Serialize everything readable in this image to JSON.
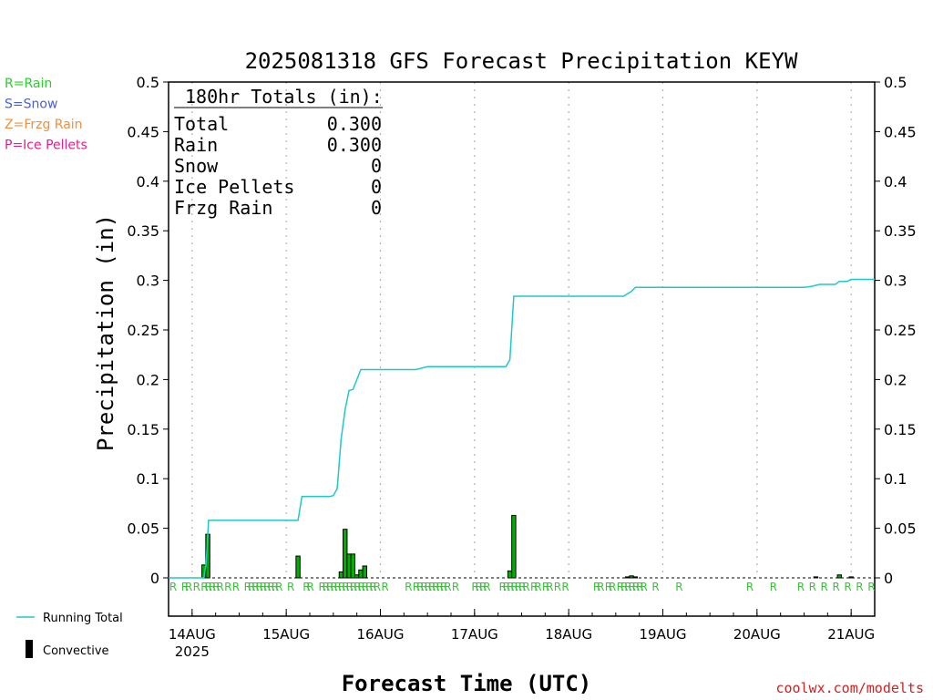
{
  "chart_data": {
    "type": "bar",
    "title": "2025081318 GFS Forecast Precipitation KEYW",
    "xlabel": "Forecast Time (UTC)",
    "ylabel": "Precipitation (in)",
    "ylim": [
      0,
      0.5
    ],
    "y_ticks": [
      "0",
      "0.05",
      "0.1",
      "0.15",
      "0.2",
      "0.25",
      "0.3",
      "0.35",
      "0.4",
      "0.45",
      "0.5"
    ],
    "xlim_hours": [
      0,
      180
    ],
    "x_ticks": [
      {
        "hour": 6,
        "label": "14AUG",
        "sublabel": "2025"
      },
      {
        "hour": 30,
        "label": "15AUG",
        "sublabel": ""
      },
      {
        "hour": 54,
        "label": "16AUG",
        "sublabel": ""
      },
      {
        "hour": 78,
        "label": "17AUG",
        "sublabel": ""
      },
      {
        "hour": 102,
        "label": "18AUG",
        "sublabel": ""
      },
      {
        "hour": 126,
        "label": "19AUG",
        "sublabel": ""
      },
      {
        "hour": 150,
        "label": "20AUG",
        "sublabel": ""
      },
      {
        "hour": 174,
        "label": "21AUG",
        "sublabel": ""
      }
    ],
    "totals": {
      "heading": "180hr Totals (in):",
      "rows": [
        {
          "label": "Total",
          "value": "0.300"
        },
        {
          "label": "Rain",
          "value": "0.300"
        },
        {
          "label": "Snow",
          "value": "0"
        },
        {
          "label": "Ice Pellets",
          "value": "0"
        },
        {
          "label": "Frzg Rain",
          "value": "0"
        }
      ]
    },
    "type_key": [
      {
        "text": "R=Rain",
        "color": "#2ecc2e"
      },
      {
        "text": "S=Snow",
        "color": "#4a5fd6"
      },
      {
        "text": "Z=Frzg Rain",
        "color": "#f0903a"
      },
      {
        "text": "P=Ice Pellets",
        "color": "#e0208a"
      }
    ],
    "legend": {
      "running": "Running Total",
      "convective": "Convective"
    },
    "series": [
      {
        "name": "Running Total",
        "color": "#20c8c8",
        "points": [
          [
            0,
            0
          ],
          [
            9,
            0
          ],
          [
            9.6,
            0.015
          ],
          [
            10.2,
            0.058
          ],
          [
            24,
            0.058
          ],
          [
            33,
            0.058
          ],
          [
            34,
            0.082
          ],
          [
            41,
            0.082
          ],
          [
            42,
            0.083
          ],
          [
            43,
            0.09
          ],
          [
            44,
            0.14
          ],
          [
            45,
            0.17
          ],
          [
            46,
            0.189
          ],
          [
            47,
            0.19
          ],
          [
            48,
            0.2
          ],
          [
            49,
            0.21
          ],
          [
            63,
            0.21
          ],
          [
            66,
            0.213
          ],
          [
            86,
            0.213
          ],
          [
            87,
            0.22
          ],
          [
            88,
            0.284
          ],
          [
            116,
            0.284
          ],
          [
            118,
            0.289
          ],
          [
            119,
            0.293
          ],
          [
            162,
            0.293
          ],
          [
            164,
            0.294
          ],
          [
            166,
            0.296
          ],
          [
            170,
            0.296
          ],
          [
            171,
            0.299
          ],
          [
            173,
            0.299
          ],
          [
            174,
            0.301
          ],
          [
            180,
            0.301
          ]
        ]
      },
      {
        "name": "",
        "color": "#00b000",
        "bars": [
          [
            9,
            0.013
          ],
          [
            10,
            0.044
          ],
          [
            33,
            0.022
          ],
          [
            44,
            0.006
          ],
          [
            45,
            0.049
          ],
          [
            46,
            0.024
          ],
          [
            47,
            0.024
          ],
          [
            48,
            0.003
          ],
          [
            49,
            0.008
          ],
          [
            50,
            0.012
          ],
          [
            87,
            0.007
          ],
          [
            88,
            0.063
          ],
          [
            117,
            0.001
          ],
          [
            118,
            0.002
          ],
          [
            119,
            0.001
          ],
          [
            165,
            0.001
          ],
          [
            171,
            0.003
          ],
          [
            174,
            0.001
          ]
        ]
      }
    ],
    "ptype_markers": {
      "label": "R",
      "color": "#2ecc2e",
      "hours": [
        0,
        3,
        4,
        6,
        8,
        9,
        10,
        11,
        12,
        14,
        16,
        19,
        20,
        21,
        22,
        23,
        24,
        25,
        26,
        27,
        30,
        34,
        35,
        38,
        39,
        40,
        41,
        42,
        43,
        44,
        45,
        46,
        47,
        48,
        49,
        50,
        51,
        52,
        54,
        60,
        62,
        63,
        64,
        65,
        66,
        67,
        68,
        69,
        70,
        72,
        77,
        78,
        79,
        80,
        84,
        85,
        86,
        87,
        88,
        89,
        90,
        92,
        93,
        95,
        96,
        98,
        100,
        108,
        109,
        111,
        112,
        114,
        115,
        116,
        117,
        118,
        119,
        120,
        123,
        129,
        147,
        153,
        160,
        163,
        166,
        169,
        172,
        175,
        178
      ]
    }
  },
  "source": "coolwx.com/modelts"
}
